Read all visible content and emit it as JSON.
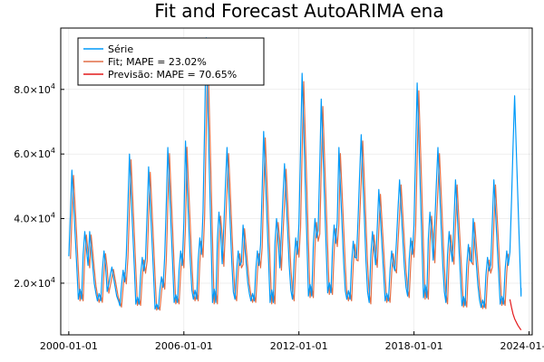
{
  "chart_data": {
    "type": "line",
    "title": "Fit and Forecast AutoARIMA ena",
    "xlabel": "",
    "ylabel": "",
    "x_axis": {
      "type": "date",
      "range": [
        "1999-08-01",
        "2024-03-01"
      ],
      "ticks": [
        "2000-01-01",
        "2006-01-01",
        "2012-01-01",
        "2018-01-01",
        "2024-01-01"
      ],
      "tick_labels": [
        "2000-01-01",
        "2006-01-01",
        "2012-01-01",
        "2018-01-01",
        "2024-01-01"
      ]
    },
    "y_axis": {
      "range": [
        4000,
        99000
      ],
      "ticks": [
        20000,
        40000,
        60000,
        80000
      ],
      "tick_labels": [
        {
          "mantissa": "2.0×10",
          "exp": "4"
        },
        {
          "mantissa": "4.0×10",
          "exp": "4"
        },
        {
          "mantissa": "6.0×10",
          "exp": "4"
        },
        {
          "mantissa": "8.0×10",
          "exp": "4"
        }
      ]
    },
    "grid": true,
    "legend": {
      "placement": "top-left"
    },
    "series": [
      {
        "name": "Série",
        "color": "#009af9",
        "start": "2000-01-01",
        "peak_months": [
          2,
          1,
          3,
          2,
          2,
          2,
          1,
          2,
          3,
          1,
          2,
          3,
          2,
          2,
          1,
          3,
          2,
          3,
          2,
          3,
          2,
          1,
          2,
          3
        ],
        "peak_values": [
          55000,
          36000,
          25000,
          60000,
          56000,
          62000,
          64000,
          96000,
          62000,
          38000,
          67000,
          57000,
          85000,
          77000,
          62000,
          66000,
          49000,
          52000,
          82000,
          62000,
          52000,
          40000,
          52000,
          78000
        ],
        "trough_values": [
          15000,
          14500,
          13000,
          13500,
          12000,
          14000,
          15000,
          14000,
          15000,
          14500,
          14000,
          15000,
          16000,
          17000,
          15000,
          14000,
          14500,
          16000,
          15500,
          14000,
          13000,
          12500,
          13500,
          16000
        ],
        "mid_bump": [
          36000,
          30000,
          24000,
          28000,
          22000,
          30000,
          34000,
          42000,
          30000,
          30000,
          40000,
          34000,
          40000,
          38000,
          33000,
          36000,
          30000,
          34000,
          42000,
          36000,
          32000,
          28000,
          30000,
          0
        ],
        "end": "2023-08-01",
        "end_value": 18500
      },
      {
        "name": "Fit; MAPE = 23.02%",
        "color": "#e26f46",
        "derived_from": "Série",
        "lag_months": 1,
        "start": "2000-01-01",
        "end": "2022-12-01"
      },
      {
        "name": "Previsão: MAPE = 70.65%",
        "color": "#e41a1c",
        "x": [
          "2023-01-01",
          "2023-02-01",
          "2023-03-01",
          "2023-04-01",
          "2023-05-01",
          "2023-06-01",
          "2023-07-01",
          "2023-08-01"
        ],
        "y": [
          15000,
          12500,
          10500,
          9000,
          8000,
          7000,
          6200,
          5500
        ]
      }
    ]
  }
}
